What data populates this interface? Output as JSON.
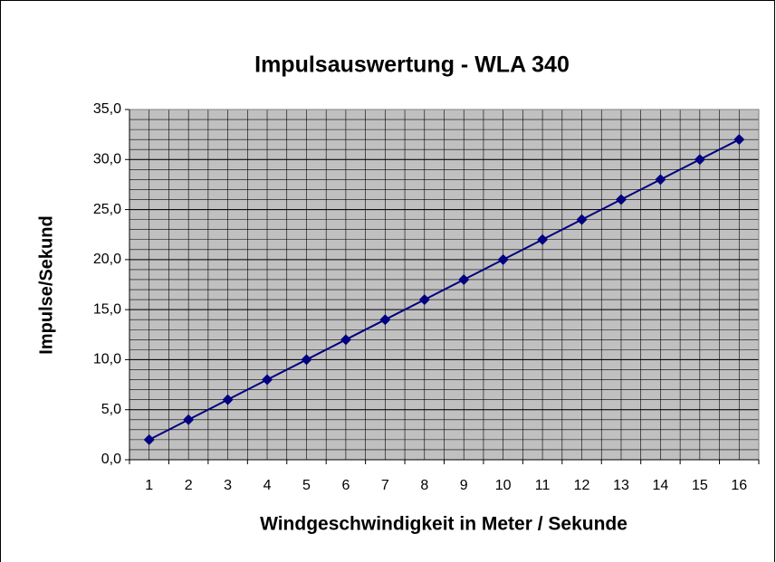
{
  "chart_data": {
    "type": "line",
    "title": "Impulsauswertung - WLA 340",
    "x_label": "Windgeschwindigkeit in Meter / Sekunde",
    "y_label": "Impulse/Sekund",
    "categories": [
      "1",
      "2",
      "3",
      "4",
      "5",
      "6",
      "7",
      "8",
      "9",
      "10",
      "11",
      "12",
      "13",
      "14",
      "15",
      "16"
    ],
    "values": [
      2,
      4,
      6,
      8,
      10,
      12,
      14,
      16,
      18,
      20,
      22,
      24,
      26,
      28,
      30,
      32
    ],
    "color": "#000080",
    "ylim": [
      0,
      35
    ],
    "yticks": [
      {
        "value": 0,
        "label": "0,0"
      },
      {
        "value": 5,
        "label": "5,0"
      },
      {
        "value": 10,
        "label": "10,0"
      },
      {
        "value": 15,
        "label": "15,0"
      },
      {
        "value": 20,
        "label": "20,0"
      },
      {
        "value": 25,
        "label": "25,0"
      },
      {
        "value": 30,
        "label": "30,0"
      },
      {
        "value": 35,
        "label": "35,0"
      }
    ],
    "grid": true
  }
}
